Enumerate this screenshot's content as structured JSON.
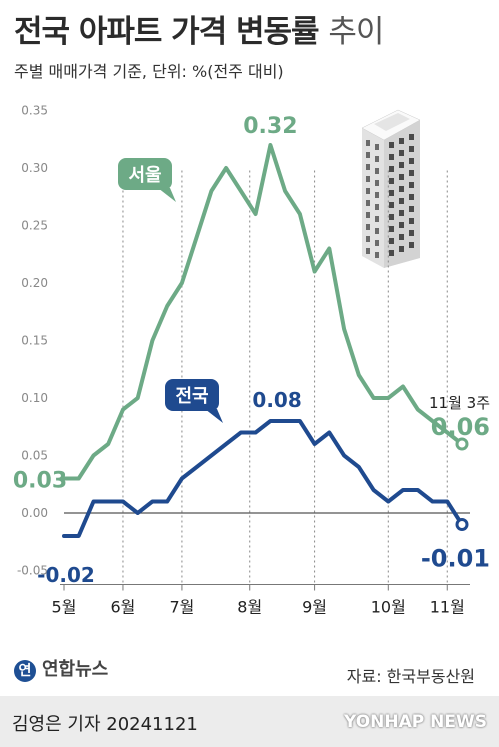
{
  "header": {
    "title_bold": "전국 아파트 가격 변동률",
    "title_light": "추이",
    "subtitle": "주별 매매가격 기준, 단위: %(전주 대비)"
  },
  "footer": {
    "logo_text": "연합뉴스",
    "source": "자료: 한국부동산원",
    "reporter": "김영은 기자  20241121",
    "watermark": "YONHAP NEWS"
  },
  "colors": {
    "seoul": "#6daa86",
    "national": "#1f4a8f"
  },
  "chart_data": {
    "type": "line",
    "ylim": [
      -0.05,
      0.35
    ],
    "yticks": [
      "0.35",
      "0.30",
      "0.25",
      "0.20",
      "0.15",
      "0.10",
      "0.05",
      "0.00",
      "-0.05"
    ],
    "month_labels": [
      "5월",
      "6월",
      "7월",
      "8월",
      "9월",
      "10월",
      "11월"
    ],
    "series": [
      {
        "name": "서울",
        "values": [
          0.03,
          0.03,
          0.05,
          0.06,
          0.09,
          0.1,
          0.15,
          0.18,
          0.2,
          0.24,
          0.28,
          0.3,
          0.28,
          0.26,
          0.32,
          0.28,
          0.26,
          0.21,
          0.23,
          0.16,
          0.12,
          0.1,
          0.1,
          0.11,
          0.09,
          0.08,
          0.07,
          0.06
        ]
      },
      {
        "name": "전국",
        "values": [
          -0.02,
          -0.02,
          0.01,
          0.01,
          0.01,
          0.0,
          0.01,
          0.01,
          0.03,
          0.04,
          0.05,
          0.06,
          0.07,
          0.07,
          0.08,
          0.08,
          0.08,
          0.06,
          0.07,
          0.05,
          0.04,
          0.02,
          0.01,
          0.02,
          0.02,
          0.01,
          0.01,
          -0.01
        ]
      }
    ],
    "annotations": {
      "seoul_label": "서울",
      "national_label": "전국",
      "seoul_start": "0.03",
      "seoul_peak": "0.32",
      "seoul_end": "0.06",
      "national_start": "-0.02",
      "national_peak": "0.08",
      "national_end": "-0.01",
      "latest_week": "11월 3주"
    }
  }
}
